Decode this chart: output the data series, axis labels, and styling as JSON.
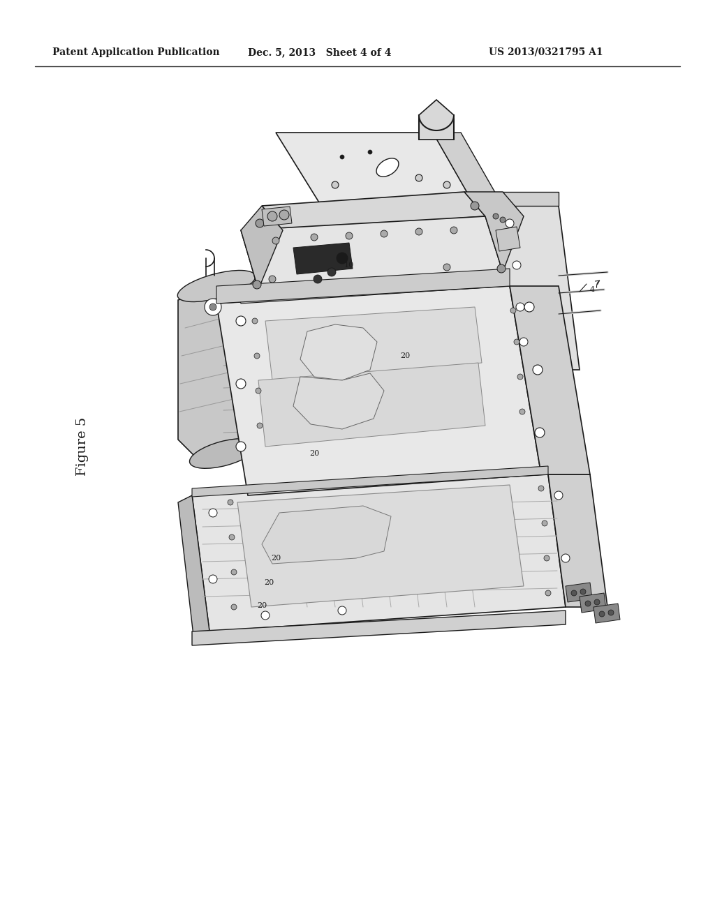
{
  "background_color": "#ffffff",
  "header_left": "Patent Application Publication",
  "header_center": "Dec. 5, 2013   Sheet 4 of 4",
  "header_right": "US 2013/0321795 A1",
  "figure_label": "Figure 5",
  "page_width": 10.24,
  "page_height": 13.2,
  "dpi": 100
}
